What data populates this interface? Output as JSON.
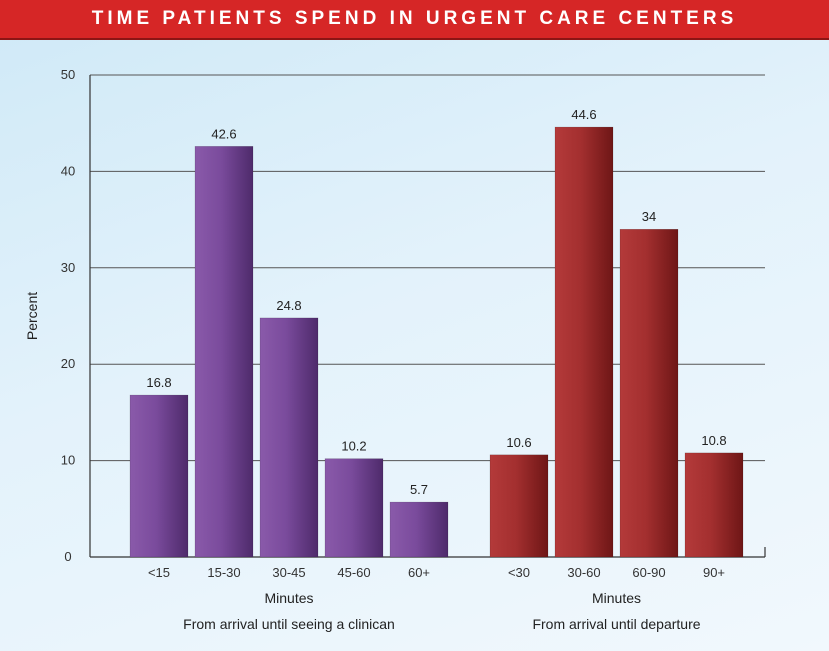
{
  "title": "TIME PATIENTS SPEND IN URGENT CARE CENTERS",
  "colors": {
    "title_bar": "#d62626",
    "purple": "#6e3f8f",
    "red": "#9b2424"
  },
  "chart_data": {
    "type": "bar",
    "title": "TIME PATIENTS SPEND IN URGENT CARE CENTERS",
    "ylabel": "Percent",
    "ylim": [
      0,
      50
    ],
    "yticks": [
      0,
      10,
      20,
      30,
      40,
      50
    ],
    "grid": true,
    "groups": [
      {
        "xlabel": "Minutes",
        "subtitle": "From arrival until seeing a clinican",
        "color": "#6e3f8f",
        "categories": [
          "<15",
          "15-30",
          "30-45",
          "45-60",
          "60+"
        ],
        "values": [
          16.8,
          42.6,
          24.8,
          10.2,
          5.7
        ]
      },
      {
        "xlabel": "Minutes",
        "subtitle": "From arrival until departure",
        "color": "#9b2424",
        "categories": [
          "<30",
          "30-60",
          "60-90",
          "90+"
        ],
        "values": [
          10.6,
          44.6,
          34,
          10.8
        ]
      }
    ]
  }
}
